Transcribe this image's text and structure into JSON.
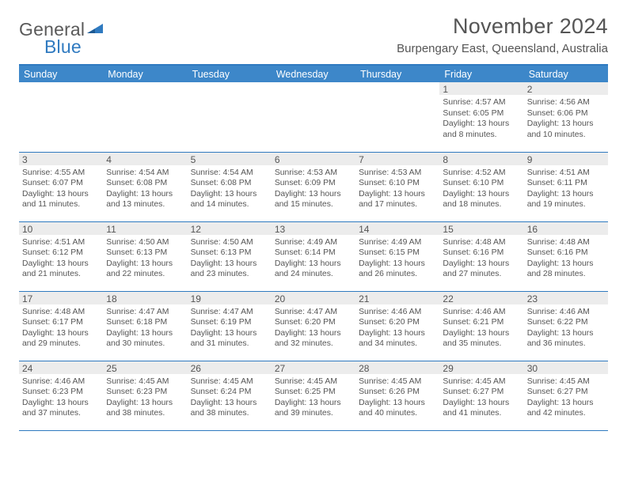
{
  "logo": {
    "word1": "General",
    "word2": "Blue"
  },
  "title": "November 2024",
  "location": "Burpengary East, Queensland, Australia",
  "colors": {
    "brand_blue": "#2f7ac0",
    "header_blue": "#3d87c9",
    "text_grey": "#555555",
    "daynum_bg": "#ececec"
  },
  "weekdays": [
    "Sunday",
    "Monday",
    "Tuesday",
    "Wednesday",
    "Thursday",
    "Friday",
    "Saturday"
  ],
  "weeks": [
    [
      {
        "blank": true
      },
      {
        "blank": true
      },
      {
        "blank": true
      },
      {
        "blank": true
      },
      {
        "blank": true
      },
      {
        "n": "1",
        "sunrise": "Sunrise: 4:57 AM",
        "sunset": "Sunset: 6:05 PM",
        "day1": "Daylight: 13 hours",
        "day2": "and 8 minutes."
      },
      {
        "n": "2",
        "sunrise": "Sunrise: 4:56 AM",
        "sunset": "Sunset: 6:06 PM",
        "day1": "Daylight: 13 hours",
        "day2": "and 10 minutes."
      }
    ],
    [
      {
        "n": "3",
        "sunrise": "Sunrise: 4:55 AM",
        "sunset": "Sunset: 6:07 PM",
        "day1": "Daylight: 13 hours",
        "day2": "and 11 minutes."
      },
      {
        "n": "4",
        "sunrise": "Sunrise: 4:54 AM",
        "sunset": "Sunset: 6:08 PM",
        "day1": "Daylight: 13 hours",
        "day2": "and 13 minutes."
      },
      {
        "n": "5",
        "sunrise": "Sunrise: 4:54 AM",
        "sunset": "Sunset: 6:08 PM",
        "day1": "Daylight: 13 hours",
        "day2": "and 14 minutes."
      },
      {
        "n": "6",
        "sunrise": "Sunrise: 4:53 AM",
        "sunset": "Sunset: 6:09 PM",
        "day1": "Daylight: 13 hours",
        "day2": "and 15 minutes."
      },
      {
        "n": "7",
        "sunrise": "Sunrise: 4:53 AM",
        "sunset": "Sunset: 6:10 PM",
        "day1": "Daylight: 13 hours",
        "day2": "and 17 minutes."
      },
      {
        "n": "8",
        "sunrise": "Sunrise: 4:52 AM",
        "sunset": "Sunset: 6:10 PM",
        "day1": "Daylight: 13 hours",
        "day2": "and 18 minutes."
      },
      {
        "n": "9",
        "sunrise": "Sunrise: 4:51 AM",
        "sunset": "Sunset: 6:11 PM",
        "day1": "Daylight: 13 hours",
        "day2": "and 19 minutes."
      }
    ],
    [
      {
        "n": "10",
        "sunrise": "Sunrise: 4:51 AM",
        "sunset": "Sunset: 6:12 PM",
        "day1": "Daylight: 13 hours",
        "day2": "and 21 minutes."
      },
      {
        "n": "11",
        "sunrise": "Sunrise: 4:50 AM",
        "sunset": "Sunset: 6:13 PM",
        "day1": "Daylight: 13 hours",
        "day2": "and 22 minutes."
      },
      {
        "n": "12",
        "sunrise": "Sunrise: 4:50 AM",
        "sunset": "Sunset: 6:13 PM",
        "day1": "Daylight: 13 hours",
        "day2": "and 23 minutes."
      },
      {
        "n": "13",
        "sunrise": "Sunrise: 4:49 AM",
        "sunset": "Sunset: 6:14 PM",
        "day1": "Daylight: 13 hours",
        "day2": "and 24 minutes."
      },
      {
        "n": "14",
        "sunrise": "Sunrise: 4:49 AM",
        "sunset": "Sunset: 6:15 PM",
        "day1": "Daylight: 13 hours",
        "day2": "and 26 minutes."
      },
      {
        "n": "15",
        "sunrise": "Sunrise: 4:48 AM",
        "sunset": "Sunset: 6:16 PM",
        "day1": "Daylight: 13 hours",
        "day2": "and 27 minutes."
      },
      {
        "n": "16",
        "sunrise": "Sunrise: 4:48 AM",
        "sunset": "Sunset: 6:16 PM",
        "day1": "Daylight: 13 hours",
        "day2": "and 28 minutes."
      }
    ],
    [
      {
        "n": "17",
        "sunrise": "Sunrise: 4:48 AM",
        "sunset": "Sunset: 6:17 PM",
        "day1": "Daylight: 13 hours",
        "day2": "and 29 minutes."
      },
      {
        "n": "18",
        "sunrise": "Sunrise: 4:47 AM",
        "sunset": "Sunset: 6:18 PM",
        "day1": "Daylight: 13 hours",
        "day2": "and 30 minutes."
      },
      {
        "n": "19",
        "sunrise": "Sunrise: 4:47 AM",
        "sunset": "Sunset: 6:19 PM",
        "day1": "Daylight: 13 hours",
        "day2": "and 31 minutes."
      },
      {
        "n": "20",
        "sunrise": "Sunrise: 4:47 AM",
        "sunset": "Sunset: 6:20 PM",
        "day1": "Daylight: 13 hours",
        "day2": "and 32 minutes."
      },
      {
        "n": "21",
        "sunrise": "Sunrise: 4:46 AM",
        "sunset": "Sunset: 6:20 PM",
        "day1": "Daylight: 13 hours",
        "day2": "and 34 minutes."
      },
      {
        "n": "22",
        "sunrise": "Sunrise: 4:46 AM",
        "sunset": "Sunset: 6:21 PM",
        "day1": "Daylight: 13 hours",
        "day2": "and 35 minutes."
      },
      {
        "n": "23",
        "sunrise": "Sunrise: 4:46 AM",
        "sunset": "Sunset: 6:22 PM",
        "day1": "Daylight: 13 hours",
        "day2": "and 36 minutes."
      }
    ],
    [
      {
        "n": "24",
        "sunrise": "Sunrise: 4:46 AM",
        "sunset": "Sunset: 6:23 PM",
        "day1": "Daylight: 13 hours",
        "day2": "and 37 minutes."
      },
      {
        "n": "25",
        "sunrise": "Sunrise: 4:45 AM",
        "sunset": "Sunset: 6:23 PM",
        "day1": "Daylight: 13 hours",
        "day2": "and 38 minutes."
      },
      {
        "n": "26",
        "sunrise": "Sunrise: 4:45 AM",
        "sunset": "Sunset: 6:24 PM",
        "day1": "Daylight: 13 hours",
        "day2": "and 38 minutes."
      },
      {
        "n": "27",
        "sunrise": "Sunrise: 4:45 AM",
        "sunset": "Sunset: 6:25 PM",
        "day1": "Daylight: 13 hours",
        "day2": "and 39 minutes."
      },
      {
        "n": "28",
        "sunrise": "Sunrise: 4:45 AM",
        "sunset": "Sunset: 6:26 PM",
        "day1": "Daylight: 13 hours",
        "day2": "and 40 minutes."
      },
      {
        "n": "29",
        "sunrise": "Sunrise: 4:45 AM",
        "sunset": "Sunset: 6:27 PM",
        "day1": "Daylight: 13 hours",
        "day2": "and 41 minutes."
      },
      {
        "n": "30",
        "sunrise": "Sunrise: 4:45 AM",
        "sunset": "Sunset: 6:27 PM",
        "day1": "Daylight: 13 hours",
        "day2": "and 42 minutes."
      }
    ]
  ]
}
